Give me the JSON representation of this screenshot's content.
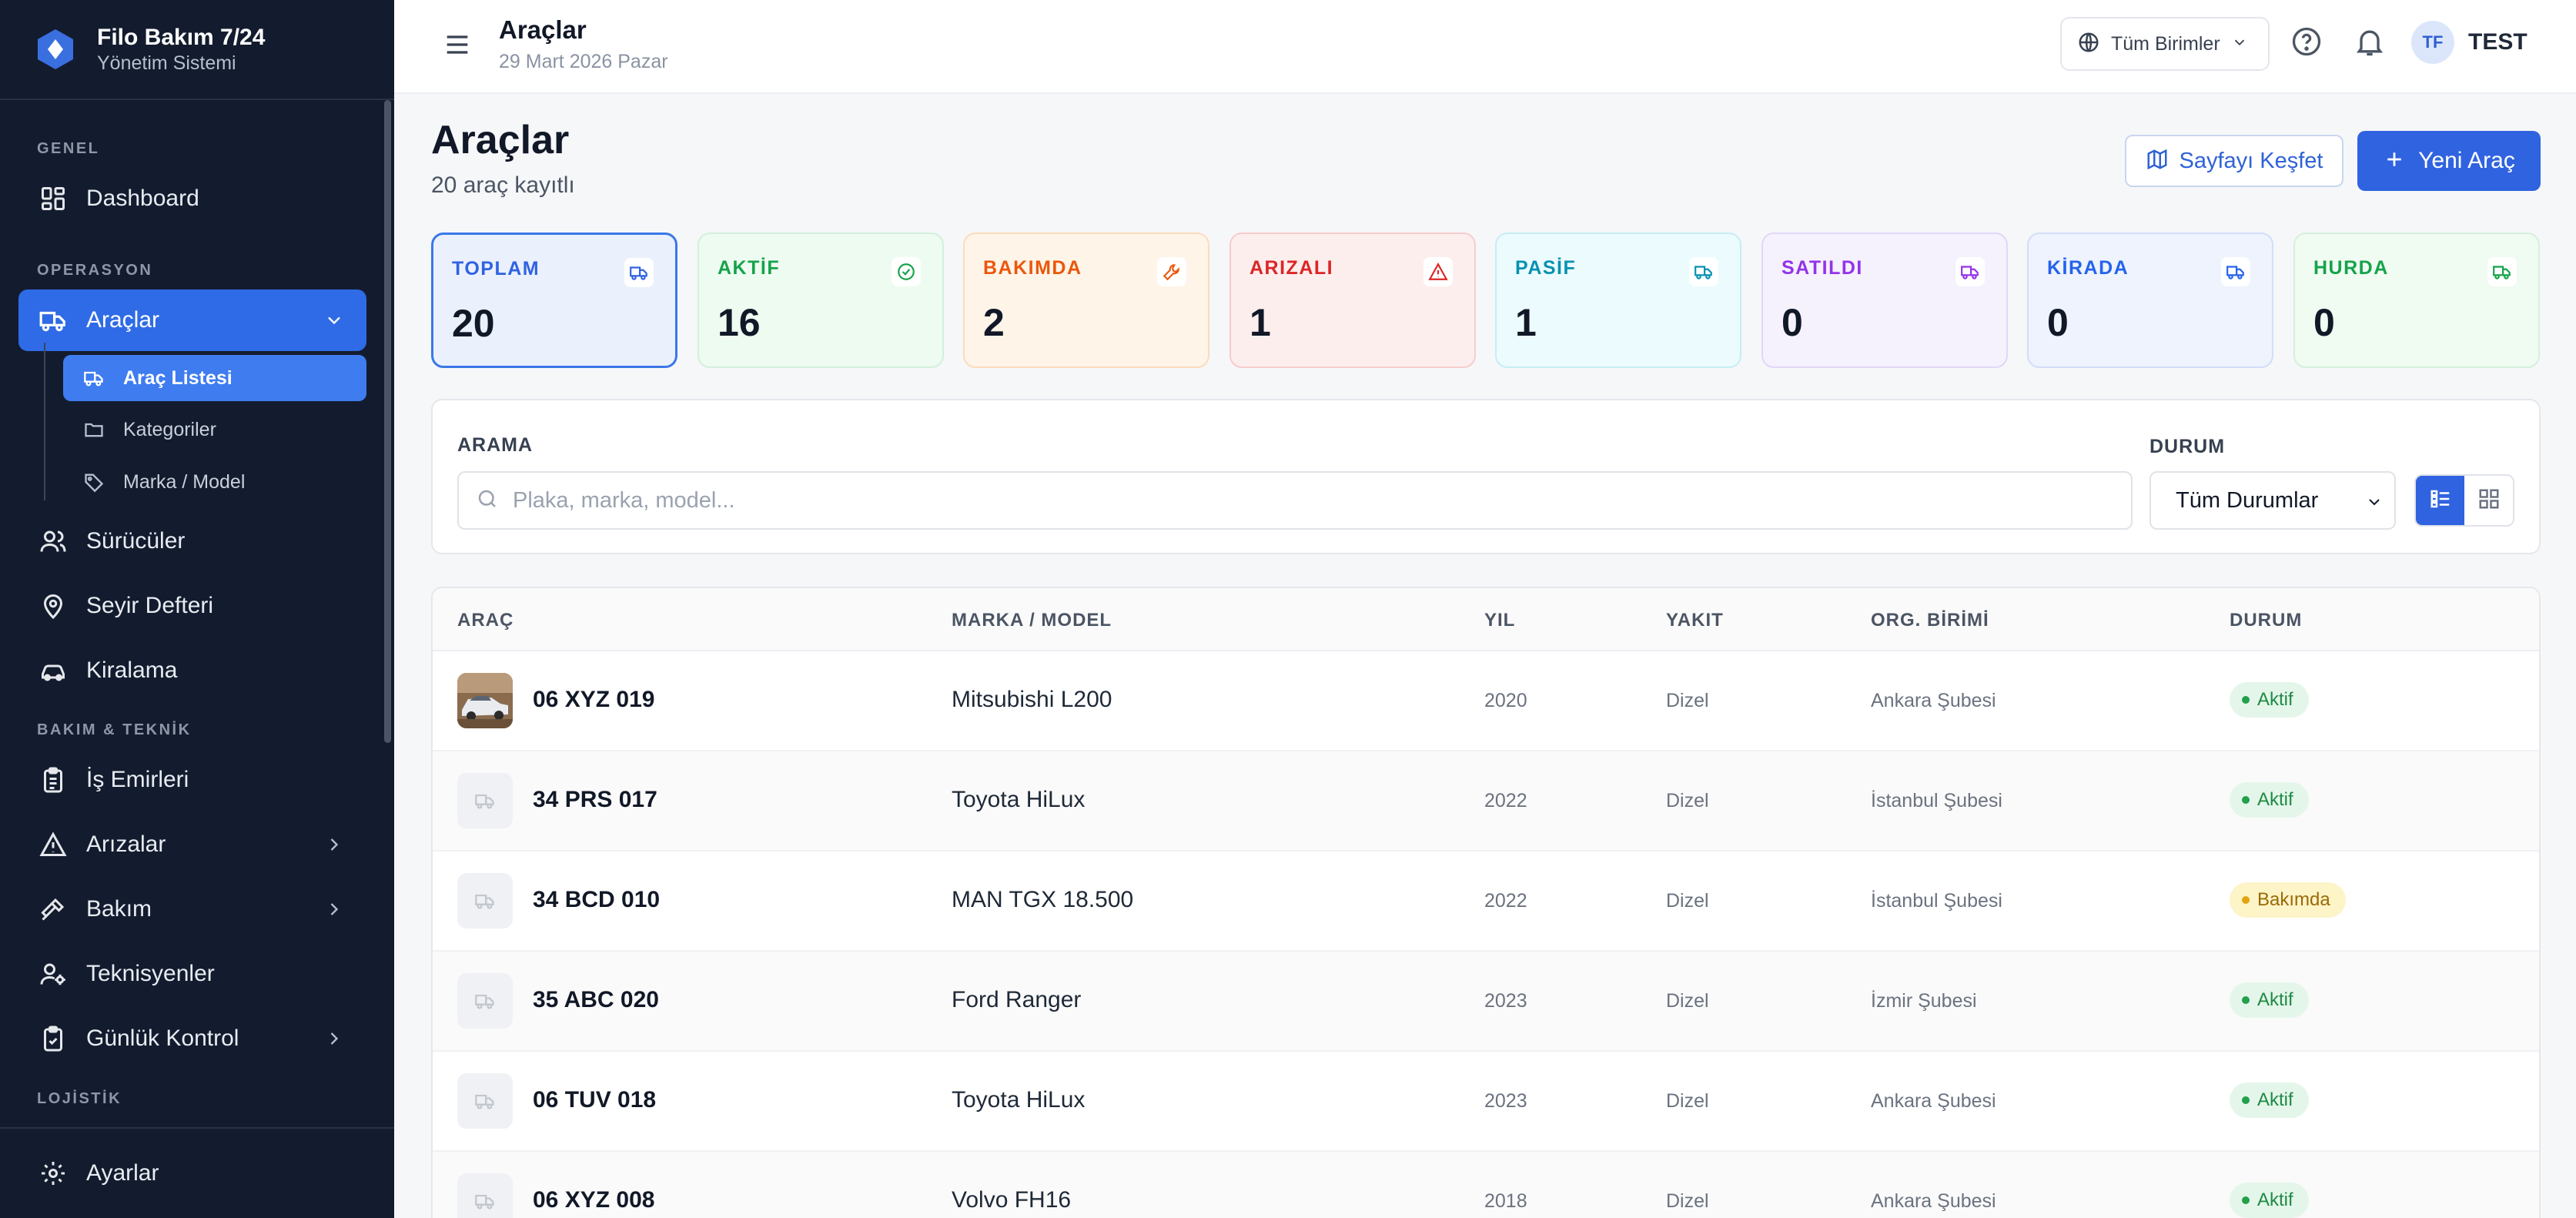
{
  "app": {
    "name": "Filo Bakım 7/24",
    "subtitle": "Yönetim Sistemi"
  },
  "sidebar": {
    "sections": [
      "GENEL",
      "OPERASYON",
      "BAKIM & TEKNİK",
      "LOJİSTİK"
    ],
    "items": [
      {
        "label": "Dashboard",
        "icon": "dashboard-icon"
      },
      {
        "label": "Araçlar",
        "icon": "truck-icon",
        "active": true
      },
      {
        "label": "Sürücüler",
        "icon": "users-icon"
      },
      {
        "label": "Seyir Defteri",
        "icon": "map-pin-icon"
      },
      {
        "label": "Kiralama",
        "icon": "car-icon"
      },
      {
        "label": "İş Emirleri",
        "icon": "clipboard-icon"
      },
      {
        "label": "Arızalar",
        "icon": "alert-triangle-icon"
      },
      {
        "label": "Bakım",
        "icon": "hammer-icon"
      },
      {
        "label": "Teknisyenler",
        "icon": "technician-icon"
      },
      {
        "label": "Günlük Kontrol",
        "icon": "clipboard-check-icon"
      }
    ],
    "subitems": [
      {
        "label": "Araç Listesi",
        "icon": "truck-icon",
        "active": true
      },
      {
        "label": "Kategoriler",
        "icon": "folder-icon"
      },
      {
        "label": "Marka / Model",
        "icon": "tag-icon"
      }
    ],
    "footer": {
      "label": "Ayarlar",
      "icon": "gear-icon"
    }
  },
  "topbar": {
    "title": "Araçlar",
    "date": "29 Mart 2026 Pazar",
    "unit_select": "Tüm Birimler",
    "avatar_initials": "TF",
    "user_name": "TEST"
  },
  "page": {
    "title": "Araçlar",
    "subtitle": "20 araç kayıtlı",
    "explore_button": "Sayfayı Keşfet",
    "new_button": "Yeni Araç"
  },
  "stats": [
    {
      "label": "TOPLAM",
      "value": "20",
      "color": "#2f63e0",
      "bg": "#eaf1fd",
      "border": "#3b78e7"
    },
    {
      "label": "AKTİF",
      "value": "16",
      "color": "#16a34a",
      "bg": "#eefbf1",
      "border": "#d3f0dc"
    },
    {
      "label": "BAKIMDA",
      "value": "2",
      "color": "#ea580c",
      "bg": "#fff4e8",
      "border": "#fbdcbc"
    },
    {
      "label": "ARIZALI",
      "value": "1",
      "color": "#dc2626",
      "bg": "#fdeeee",
      "border": "#f6cccc"
    },
    {
      "label": "PASİF",
      "value": "1",
      "color": "#0891b2",
      "bg": "#ecfbfd",
      "border": "#c6eef4"
    },
    {
      "label": "SATILDI",
      "value": "0",
      "color": "#9333ea",
      "bg": "#f5f1fd",
      "border": "#e2d7f8"
    },
    {
      "label": "KİRADA",
      "value": "0",
      "color": "#2563eb",
      "bg": "#eef3fd",
      "border": "#d2def8"
    },
    {
      "label": "HURDA",
      "value": "0",
      "color": "#16a34a",
      "bg": "#f0fbf2",
      "border": "#d5f0dc"
    }
  ],
  "filters": {
    "search_label": "ARAMA",
    "search_placeholder": "Plaka, marka, model...",
    "status_label": "DURUM",
    "status_value": "Tüm Durumlar"
  },
  "table": {
    "columns": [
      "ARAÇ",
      "MARKA / MODEL",
      "YIL",
      "YAKIT",
      "ORG. BİRİMİ",
      "DURUM"
    ],
    "rows": [
      {
        "plate": "06 XYZ 019",
        "model": "Mitsubishi L200",
        "year": "2020",
        "fuel": "Dizel",
        "unit": "Ankara Şubesi",
        "status": "Aktif",
        "status_kind": "ok",
        "photo": true
      },
      {
        "plate": "34 PRS 017",
        "model": "Toyota HiLux",
        "year": "2022",
        "fuel": "Dizel",
        "unit": "İstanbul Şubesi",
        "status": "Aktif",
        "status_kind": "ok"
      },
      {
        "plate": "34 BCD 010",
        "model": "MAN TGX 18.500",
        "year": "2022",
        "fuel": "Dizel",
        "unit": "İstanbul Şubesi",
        "status": "Bakımda",
        "status_kind": "warn"
      },
      {
        "plate": "35 ABC 020",
        "model": "Ford Ranger",
        "year": "2023",
        "fuel": "Dizel",
        "unit": "İzmir Şubesi",
        "status": "Aktif",
        "status_kind": "ok"
      },
      {
        "plate": "06 TUV 018",
        "model": "Toyota HiLux",
        "year": "2023",
        "fuel": "Dizel",
        "unit": "Ankara Şubesi",
        "status": "Aktif",
        "status_kind": "ok"
      },
      {
        "plate": "06 XYZ 008",
        "model": "Volvo FH16",
        "year": "2018",
        "fuel": "Dizel",
        "unit": "Ankara Şubesi",
        "status": "Aktif",
        "status_kind": "ok"
      }
    ]
  }
}
